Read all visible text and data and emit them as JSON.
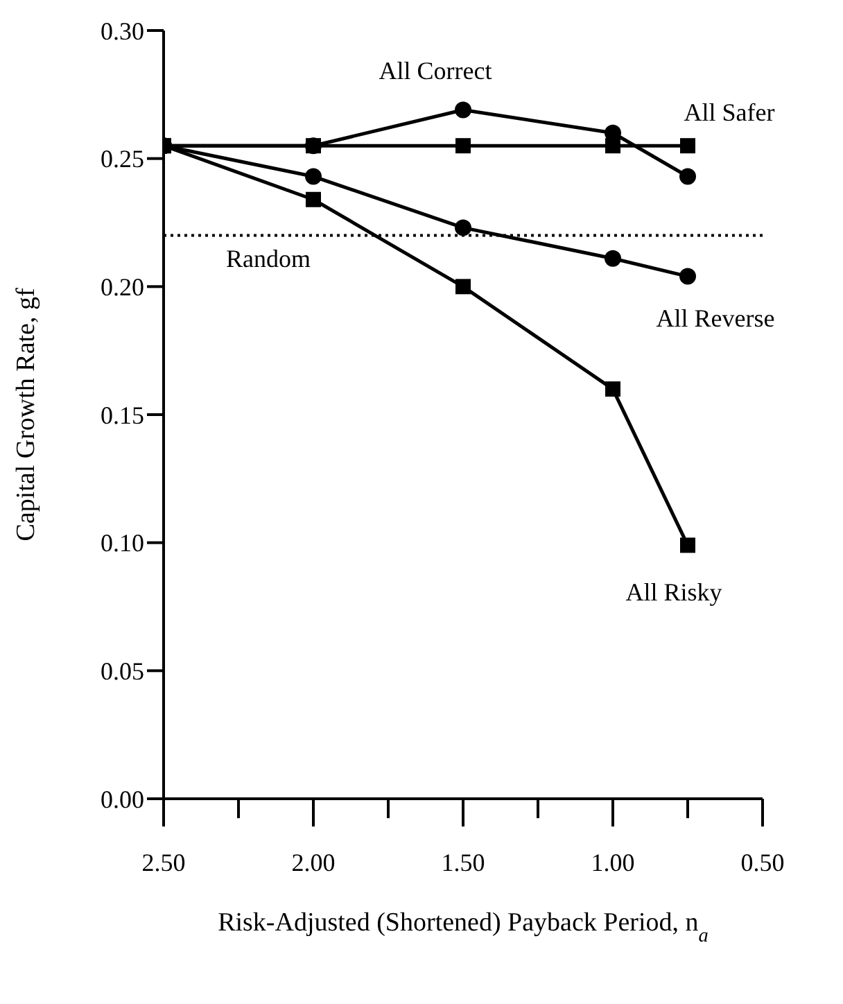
{
  "chart_data": {
    "type": "line",
    "xlabel": "Risk-Adjusted (Shortened) Payback Period, n$_{a}$",
    "ylabel": "Capital Growth Rate, gf",
    "x": [
      2.5,
      2.0,
      1.5,
      1.0,
      0.75
    ],
    "series": [
      {
        "name": "All Correct",
        "color": "#000000",
        "marker": "circle",
        "values": [
          0.255,
          0.255,
          0.269,
          0.26,
          0.243
        ]
      },
      {
        "name": "All Safer",
        "color": "#000000",
        "marker": "square",
        "values": [
          0.255,
          0.255,
          0.255,
          0.255,
          0.255
        ]
      },
      {
        "name": "All Reverse",
        "color": "#000000",
        "marker": "circle",
        "values": [
          0.255,
          0.243,
          0.223,
          0.211,
          0.204
        ]
      },
      {
        "name": "All Risky",
        "color": "#000000",
        "marker": "square",
        "values": [
          0.255,
          0.234,
          0.2,
          0.16,
          0.099
        ]
      }
    ],
    "xlim": [
      2.5,
      0.5
    ],
    "xticks": [
      {
        "value": 2.5,
        "label": "2.50"
      },
      {
        "value": 2.25,
        "label": null
      },
      {
        "value": 2.0,
        "label": "2.00"
      },
      {
        "value": 1.75,
        "label": null
      },
      {
        "value": 1.5,
        "label": "1.50"
      },
      {
        "value": 1.25,
        "label": null
      },
      {
        "value": 1.0,
        "label": "1.00"
      },
      {
        "value": 0.75,
        "label": null
      },
      {
        "value": 0.5,
        "label": "0.50"
      }
    ],
    "ylim": [
      0,
      0.3
    ],
    "yticks": [
      {
        "value": 0,
        "label": "0.00"
      },
      {
        "value": 0.05,
        "label": "0.05"
      },
      {
        "value": 0.1,
        "label": "0.10"
      },
      {
        "value": 0.15,
        "label": "0.15"
      },
      {
        "value": 0.2,
        "label": "0.20"
      },
      {
        "value": 0.25,
        "label": "0.25"
      },
      {
        "value": 0.3,
        "label": "0.30"
      }
    ],
    "ref_lines": [
      {
        "axis": "y",
        "value": 0.22,
        "label": "Random",
        "color": "#000000",
        "line_style": "dotted"
      }
    ],
    "grid": false,
    "legend": false
  }
}
